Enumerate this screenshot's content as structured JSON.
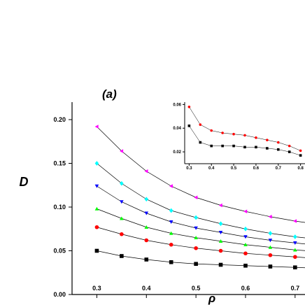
{
  "panel_label": "(a)",
  "chart_data": [
    {
      "type": "line",
      "xlabel": "ρ",
      "ylabel": "D",
      "xlim": [
        0.25,
        0.72
      ],
      "ylim": [
        0.0,
        0.22
      ],
      "x_ticks": [
        "0.3",
        "0.4",
        "0.5",
        "0.6",
        "0.7"
      ],
      "y_ticks": [
        "0.00",
        "0.05",
        "0.10",
        "0.15",
        "0.20"
      ],
      "series": [
        {
          "color": "#ff00ff",
          "marker": "triangle-left",
          "x": [
            0.3,
            0.35,
            0.4,
            0.45,
            0.5,
            0.55,
            0.6,
            0.65,
            0.7,
            0.75
          ],
          "y": [
            0.192,
            0.164,
            0.141,
            0.124,
            0.111,
            0.102,
            0.095,
            0.089,
            0.084,
            0.08
          ]
        },
        {
          "color": "#00ffff",
          "marker": "diamond",
          "x": [
            0.3,
            0.35,
            0.4,
            0.45,
            0.5,
            0.55,
            0.6,
            0.65,
            0.7,
            0.75
          ],
          "y": [
            0.15,
            0.127,
            0.109,
            0.096,
            0.088,
            0.081,
            0.075,
            0.07,
            0.066,
            0.063
          ]
        },
        {
          "color": "#0000ff",
          "marker": "triangle-down",
          "x": [
            0.3,
            0.35,
            0.4,
            0.45,
            0.5,
            0.55,
            0.6,
            0.65,
            0.7,
            0.75
          ],
          "y": [
            0.124,
            0.106,
            0.093,
            0.083,
            0.076,
            0.071,
            0.066,
            0.062,
            0.059,
            0.056
          ]
        },
        {
          "color": "#00ff00",
          "marker": "triangle-up",
          "x": [
            0.3,
            0.35,
            0.4,
            0.45,
            0.5,
            0.55,
            0.6,
            0.65,
            0.7,
            0.75
          ],
          "y": [
            0.098,
            0.087,
            0.077,
            0.07,
            0.065,
            0.061,
            0.057,
            0.054,
            0.051,
            0.049
          ]
        },
        {
          "color": "#ff0000",
          "marker": "circle",
          "x": [
            0.3,
            0.35,
            0.4,
            0.45,
            0.5,
            0.55,
            0.6,
            0.65,
            0.7,
            0.75
          ],
          "y": [
            0.077,
            0.069,
            0.062,
            0.057,
            0.053,
            0.05,
            0.047,
            0.045,
            0.043,
            0.041
          ]
        },
        {
          "color": "#000000",
          "marker": "square",
          "x": [
            0.3,
            0.35,
            0.4,
            0.45,
            0.5,
            0.55,
            0.6,
            0.65,
            0.7,
            0.75
          ],
          "y": [
            0.05,
            0.044,
            0.04,
            0.037,
            0.035,
            0.034,
            0.033,
            0.032,
            0.031,
            0.03
          ]
        }
      ]
    },
    {
      "type": "line",
      "role": "inset",
      "xlim": [
        0.28,
        0.82
      ],
      "ylim": [
        0.01,
        0.062
      ],
      "x_ticks": [
        "0.3",
        "0.4",
        "0.5",
        "0.6",
        "0.7",
        "0.8"
      ],
      "y_ticks": [
        "0.02",
        "0.04",
        "0.06"
      ],
      "series": [
        {
          "color": "#ff0000",
          "marker": "circle",
          "x": [
            0.3,
            0.35,
            0.4,
            0.45,
            0.5,
            0.55,
            0.6,
            0.65,
            0.7,
            0.75,
            0.8
          ],
          "y": [
            0.058,
            0.043,
            0.038,
            0.036,
            0.035,
            0.034,
            0.032,
            0.03,
            0.028,
            0.025,
            0.021
          ]
        },
        {
          "color": "#000000",
          "marker": "square",
          "x": [
            0.3,
            0.35,
            0.4,
            0.45,
            0.5,
            0.55,
            0.6,
            0.65,
            0.7,
            0.75,
            0.8
          ],
          "y": [
            0.042,
            0.028,
            0.025,
            0.025,
            0.025,
            0.024,
            0.024,
            0.023,
            0.022,
            0.02,
            0.017
          ]
        }
      ]
    }
  ]
}
